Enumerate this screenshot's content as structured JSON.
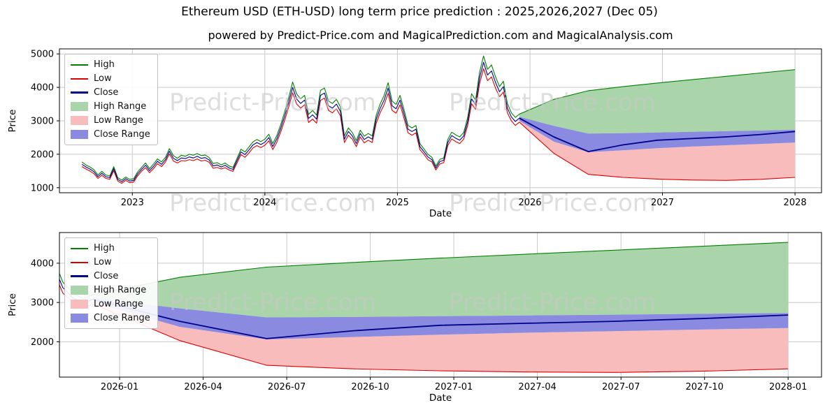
{
  "figure": {
    "title": "Ethereum USD (ETH-USD) long term price prediction : 2025,2026,2027 (Dec 05)",
    "subtitle": "powered by Predict-Price.com and MagicalPrediction.com and MagicalAnalysis.com",
    "watermark": "Predict-Price.com"
  },
  "colors": {
    "high_line": "#008000",
    "low_line": "#dd0000",
    "close_line": "#00008b",
    "high_range_fill": "#aad4aa",
    "low_range_fill": "#f9bcbc",
    "close_range_fill": "#8a8ae0",
    "grid": "#c9c9c9",
    "axis": "#000000",
    "watermark": "#c9c9c9"
  },
  "legend": {
    "entries": [
      {
        "label": "High",
        "type": "line",
        "color_key": "high_line"
      },
      {
        "label": "Low",
        "type": "line",
        "color_key": "low_line"
      },
      {
        "label": "Close",
        "type": "line",
        "color_key": "close_line"
      },
      {
        "label": "High Range",
        "type": "patch",
        "color_key": "high_range_fill"
      },
      {
        "label": "Low Range",
        "type": "patch",
        "color_key": "low_range_fill"
      },
      {
        "label": "Close Range",
        "type": "patch",
        "color_key": "close_range_fill"
      }
    ]
  },
  "chart_data": [
    {
      "type": "line",
      "title": "",
      "xlabel": "Date",
      "ylabel": "Price",
      "xlim": [
        2022.45,
        2028.2
      ],
      "ylim": [
        850,
        5150
      ],
      "yticks": [
        1000,
        2000,
        3000,
        4000,
        5000
      ],
      "xticks": [
        2023,
        2024,
        2025,
        2026,
        2027,
        2028
      ],
      "xtick_labels": [
        "2023",
        "2024",
        "2025",
        "2026",
        "2027",
        "2028"
      ],
      "grid": true,
      "legend_position": "upper left",
      "series": {
        "history": {
          "x": [
            2022.62,
            2022.65,
            2022.68,
            2022.71,
            2022.74,
            2022.77,
            2022.8,
            2022.83,
            2022.86,
            2022.89,
            2022.92,
            2022.95,
            2022.98,
            2023.01,
            2023.04,
            2023.07,
            2023.1,
            2023.13,
            2023.16,
            2023.19,
            2023.22,
            2023.25,
            2023.28,
            2023.31,
            2023.34,
            2023.37,
            2023.4,
            2023.43,
            2023.46,
            2023.49,
            2023.52,
            2023.55,
            2023.58,
            2023.61,
            2023.64,
            2023.67,
            2023.7,
            2023.73,
            2023.76,
            2023.79,
            2023.82,
            2023.85,
            2023.88,
            2023.91,
            2023.94,
            2023.97,
            2024.0,
            2024.03,
            2024.06,
            2024.09,
            2024.12,
            2024.15,
            2024.18,
            2024.21,
            2024.24,
            2024.27,
            2024.3,
            2024.33,
            2024.36,
            2024.39,
            2024.42,
            2024.45,
            2024.48,
            2024.51,
            2024.54,
            2024.57,
            2024.6,
            2024.63,
            2024.66,
            2024.69,
            2024.72,
            2024.75,
            2024.78,
            2024.81,
            2024.84,
            2024.87,
            2024.9,
            2024.93,
            2024.96,
            2024.99,
            2025.02,
            2025.05,
            2025.08,
            2025.11,
            2025.14,
            2025.17,
            2025.2,
            2025.23,
            2025.26,
            2025.29,
            2025.32,
            2025.35,
            2025.38,
            2025.41,
            2025.44,
            2025.47,
            2025.5,
            2025.53,
            2025.56,
            2025.59,
            2025.62,
            2025.65,
            2025.68,
            2025.71,
            2025.74,
            2025.77,
            2025.8,
            2025.83,
            2025.86,
            2025.89,
            2025.92
          ],
          "high": [
            1770,
            1680,
            1620,
            1540,
            1380,
            1490,
            1380,
            1350,
            1630,
            1300,
            1230,
            1320,
            1250,
            1270,
            1470,
            1610,
            1740,
            1570,
            1710,
            1860,
            1770,
            1910,
            2170,
            1960,
            1880,
            1970,
            1940,
            2000,
            1970,
            2020,
            1960,
            1980,
            1900,
            1720,
            1750,
            1680,
            1740,
            1650,
            1610,
            1880,
            2150,
            2070,
            2220,
            2370,
            2440,
            2380,
            2450,
            2600,
            2320,
            2560,
            2890,
            3280,
            3690,
            4160,
            3800,
            3660,
            3760,
            3190,
            3310,
            3170,
            3910,
            3980,
            3590,
            3520,
            3640,
            3410,
            2550,
            2790,
            2650,
            2410,
            2720,
            2540,
            2620,
            2550,
            3170,
            3500,
            3760,
            4140,
            3590,
            3490,
            3760,
            3330,
            2860,
            2790,
            2860,
            2320,
            2160,
            2000,
            1910,
            1650,
            1850,
            1890,
            2440,
            2660,
            2580,
            2520,
            2650,
            3100,
            3810,
            3620,
            4450,
            4940,
            4540,
            4670,
            4320,
            4020,
            4180,
            3520,
            3240,
            3100,
            3200
          ],
          "low": [
            1630,
            1560,
            1500,
            1420,
            1280,
            1370,
            1280,
            1250,
            1510,
            1200,
            1130,
            1220,
            1150,
            1170,
            1350,
            1490,
            1600,
            1450,
            1570,
            1720,
            1630,
            1770,
            2010,
            1800,
            1740,
            1810,
            1800,
            1840,
            1810,
            1860,
            1800,
            1820,
            1760,
            1580,
            1610,
            1560,
            1600,
            1530,
            1490,
            1740,
            1990,
            1910,
            2040,
            2190,
            2260,
            2200,
            2270,
            2400,
            2140,
            2360,
            2670,
            3020,
            3410,
            3840,
            3500,
            3380,
            3480,
            2950,
            3050,
            2930,
            3610,
            3680,
            3310,
            3240,
            3360,
            3150,
            2350,
            2570,
            2450,
            2230,
            2520,
            2340,
            2420,
            2350,
            2930,
            3240,
            3480,
            3820,
            3310,
            3230,
            3480,
            3070,
            2640,
            2570,
            2640,
            2140,
            2000,
            1840,
            1770,
            1530,
            1710,
            1750,
            2260,
            2460,
            2380,
            2320,
            2450,
            2860,
            3510,
            3340,
            4110,
            4560,
            4200,
            4310,
            3980,
            3720,
            3860,
            3240,
            3000,
            2860,
            2960
          ],
          "close": [
            1700,
            1620,
            1560,
            1480,
            1330,
            1430,
            1330,
            1300,
            1570,
            1250,
            1180,
            1270,
            1200,
            1220,
            1410,
            1550,
            1670,
            1510,
            1640,
            1790,
            1700,
            1840,
            2090,
            1880,
            1810,
            1890,
            1870,
            1920,
            1890,
            1940,
            1880,
            1900,
            1830,
            1650,
            1680,
            1620,
            1670,
            1590,
            1550,
            1810,
            2070,
            1990,
            2130,
            2280,
            2350,
            2290,
            2360,
            2500,
            2230,
            2460,
            2780,
            3150,
            3550,
            4000,
            3650,
            3520,
            3620,
            3070,
            3180,
            3050,
            3760,
            3830,
            3450,
            3380,
            3500,
            3280,
            2450,
            2680,
            2550,
            2320,
            2620,
            2440,
            2520,
            2450,
            3050,
            3370,
            3620,
            3980,
            3450,
            3360,
            3620,
            3200,
            2750,
            2680,
            2750,
            2230,
            2080,
            1920,
            1840,
            1590,
            1780,
            1820,
            2350,
            2560,
            2480,
            2420,
            2550,
            2980,
            3660,
            3480,
            4280,
            4750,
            4370,
            4490,
            4150,
            3870,
            4020,
            3380,
            3120,
            2980,
            3080
          ]
        },
        "forecast": {
          "x": [
            2025.92,
            2026.18,
            2026.44,
            2026.7,
            2026.96,
            2027.22,
            2027.48,
            2027.74,
            2028.0
          ],
          "high": [
            3200,
            3640,
            3900,
            4020,
            4130,
            4230,
            4330,
            4430,
            4530
          ],
          "close_upper": [
            3120,
            2850,
            2620,
            2630,
            2650,
            2670,
            2690,
            2710,
            2730
          ],
          "close": [
            3080,
            2520,
            2080,
            2280,
            2420,
            2470,
            2520,
            2590,
            2680
          ],
          "close_lower": [
            3000,
            2380,
            2060,
            2120,
            2180,
            2230,
            2270,
            2310,
            2350
          ],
          "low": [
            2960,
            2030,
            1400,
            1310,
            1260,
            1230,
            1220,
            1250,
            1310
          ]
        }
      }
    },
    {
      "type": "line",
      "title": "",
      "xlabel": "Date",
      "ylabel": "Price",
      "xlim": [
        2025.82,
        2028.1
      ],
      "ylim": [
        1100,
        4780
      ],
      "yticks": [
        2000,
        3000,
        4000
      ],
      "xticks": [
        2026.0,
        2026.25,
        2026.5,
        2026.75,
        2027.0,
        2027.25,
        2027.5,
        2027.75,
        2028.0
      ],
      "xtick_labels": [
        "2026-01",
        "2026-04",
        "2026-07",
        "2026-10",
        "2027-01",
        "2027-04",
        "2027-07",
        "2027-10",
        "2028-01"
      ],
      "grid": true,
      "legend_position": "upper left",
      "series_source": "shared with chart 0 (forecast zoom)"
    }
  ]
}
